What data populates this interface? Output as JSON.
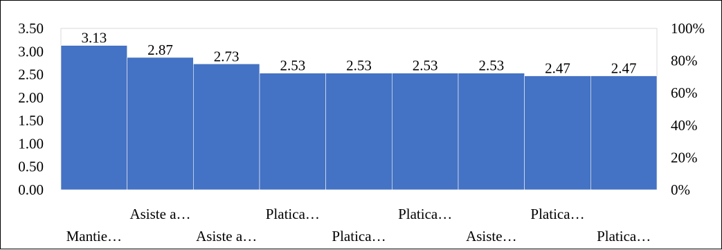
{
  "chart_data": {
    "type": "bar",
    "title": "",
    "xlabel": "",
    "ylabel": "",
    "categories": [
      "Mantie…",
      "Asiste a…",
      "Asiste a…",
      "Platica…",
      "Platica…",
      "Platica…",
      "Asiste…",
      "Platica…",
      "Platica…"
    ],
    "values": [
      3.13,
      2.87,
      2.73,
      2.53,
      2.53,
      2.53,
      2.53,
      2.47,
      2.47
    ],
    "data_labels": [
      "3.13",
      "2.87",
      "2.73",
      "2.53",
      "2.53",
      "2.53",
      "2.53",
      "2.47",
      "2.47"
    ],
    "ylim": [
      0,
      3.5
    ],
    "y_ticks": [
      "0.00",
      "0.50",
      "1.00",
      "1.50",
      "2.00",
      "2.50",
      "3.00",
      "3.50"
    ],
    "y2lim": [
      0,
      100
    ],
    "y2_ticks": [
      "0%",
      "20%",
      "40%",
      "60%",
      "80%",
      "100%"
    ],
    "bar_color": "#4472C4",
    "bar_gap": "none",
    "label_stagger": "alternating two rows",
    "grid": false,
    "legend": "none"
  }
}
